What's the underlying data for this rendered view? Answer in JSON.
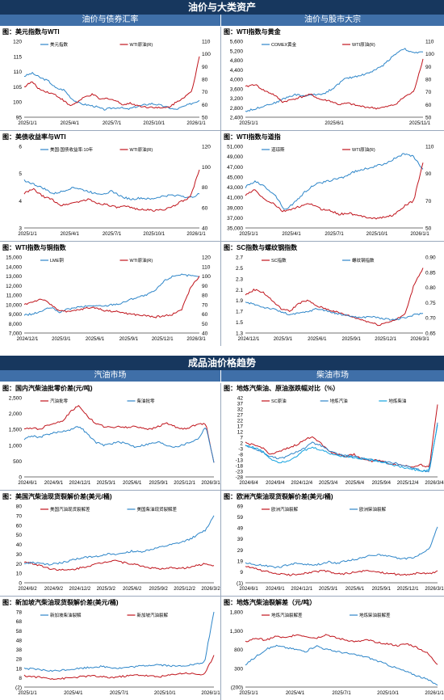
{
  "sections": {
    "top": "油价与大类资产",
    "top_left": "油价与债券汇率",
    "top_right": "油价与股市大宗",
    "bottom": "成品油价格趋势",
    "bottom_left": "汽油市场",
    "bottom_right": "柴油市场"
  },
  "colors": {
    "blue": "#2e86c9",
    "red": "#c0141c",
    "banner": "#17375e",
    "sub": "#3f6fa8"
  },
  "chart_data": [
    {
      "type": "line",
      "title": "图：美元指数与WTI",
      "x_ticks": [
        "2025/1/1",
        "2025/4/1",
        "2025/7/1",
        "2025/10/1",
        "2026/1/1"
      ],
      "y_ticks": [
        "95",
        "100",
        "105",
        "110",
        "115",
        "120"
      ],
      "ylim": [
        95,
        120
      ],
      "y2_ticks": [
        "50",
        "60",
        "70",
        "80",
        "90",
        "100",
        "110"
      ],
      "y2lim": [
        50,
        110
      ],
      "series": [
        {
          "name": "美元指数",
          "axis": "left",
          "color": "#2e86c9",
          "values": [
            108.5,
            109.5,
            108,
            107,
            104.5,
            104,
            101,
            99.5,
            99,
            98.5,
            97.5,
            98,
            98.2,
            97.6,
            98.4,
            99,
            99.5,
            99,
            98.2,
            97.5,
            98.5,
            99.5,
            100.5
          ]
        },
        {
          "name": "WTI原油(R)",
          "axis": "right",
          "color": "#c0141c",
          "values": [
            74,
            78,
            72,
            70,
            68,
            64,
            59,
            62,
            66,
            68,
            64,
            65,
            63,
            60,
            61,
            59,
            58,
            58,
            57,
            58,
            62,
            66,
            70,
            98
          ]
        }
      ]
    },
    {
      "type": "line",
      "title": "图：WTI指数与黄金",
      "x_ticks": [
        "2025/1/1",
        "2025/6/1",
        "2025/11/1"
      ],
      "y_ticks": [
        "2,400",
        "2,800",
        "3,200",
        "3,600",
        "4,000",
        "4,400",
        "4,800",
        "5,200",
        "5,600"
      ],
      "ylim": [
        2400,
        5600
      ],
      "y2_ticks": [
        "50",
        "60",
        "70",
        "80",
        "90",
        "100",
        "110"
      ],
      "y2lim": [
        50,
        110
      ],
      "series": [
        {
          "name": "COMEX黄金",
          "axis": "left",
          "color": "#2e86c9",
          "values": [
            2650,
            2750,
            2900,
            3000,
            3200,
            3350,
            3300,
            3350,
            3400,
            3650,
            4000,
            4100,
            4200,
            4350,
            4600,
            5000,
            5300,
            5100,
            5150
          ]
        },
        {
          "name": "WTI原油(R)",
          "axis": "right",
          "color": "#c0141c",
          "values": [
            74,
            76,
            71,
            68,
            62,
            64,
            66,
            68,
            64,
            63,
            60,
            61,
            59,
            58,
            57,
            58,
            60,
            66,
            70,
            96
          ]
        }
      ]
    },
    {
      "type": "line",
      "title": "图：美债收益率与WTI",
      "x_ticks": [
        "2025/1/1",
        "2025/4/1",
        "2025/7/1",
        "2025/10/1",
        "2026/1/1"
      ],
      "y_ticks": [
        "3",
        "4",
        "5",
        "6"
      ],
      "ylim": [
        3,
        6
      ],
      "y2_ticks": [
        "40",
        "60",
        "80",
        "100",
        "120"
      ],
      "y2lim": [
        40,
        120
      ],
      "series": [
        {
          "name": "美国:国债收益率:10年",
          "axis": "left",
          "color": "#2e86c9",
          "values": [
            4.75,
            4.6,
            4.45,
            4.25,
            4.35,
            4.5,
            4.4,
            4.3,
            4.25,
            4.35,
            4.15,
            4.05,
            4.1,
            4.05,
            4.15,
            4.2,
            4.2,
            4.1,
            4.25
          ]
        },
        {
          "name": "WTI原油(R)",
          "axis": "right",
          "color": "#c0141c",
          "values": [
            74,
            78,
            71,
            68,
            62,
            64,
            66,
            68,
            64,
            63,
            60,
            61,
            59,
            58,
            57,
            58,
            60,
            66,
            70,
            97
          ]
        }
      ]
    },
    {
      "type": "line",
      "title": "图：WTI指数与道指",
      "x_ticks": [
        "2025/1/1",
        "2025/4/1",
        "2025/7/1",
        "2025/10/1",
        "2026/1/1"
      ],
      "y_ticks": [
        "35,000",
        "37,000",
        "39,000",
        "41,000",
        "43,000",
        "45,000",
        "47,000",
        "49,000",
        "51,000"
      ],
      "ylim": [
        35000,
        51000
      ],
      "y2_ticks": [
        "50",
        "70",
        "90",
        "110"
      ],
      "y2lim": [
        50,
        110
      ],
      "series": [
        {
          "name": "道琼斯",
          "axis": "left",
          "color": "#2e86c9",
          "values": [
            43000,
            44200,
            43000,
            41500,
            38500,
            40000,
            42000,
            43500,
            44000,
            44500,
            45000,
            46000,
            46500,
            47000,
            47500,
            48500,
            49500,
            49000,
            46500
          ]
        },
        {
          "name": "WTI原油(R)",
          "axis": "right",
          "color": "#c0141c",
          "values": [
            74,
            78,
            71,
            68,
            62,
            64,
            66,
            68,
            64,
            63,
            60,
            61,
            59,
            58,
            57,
            58,
            60,
            66,
            70,
            98
          ]
        }
      ]
    },
    {
      "type": "line",
      "title": "图：WTI指数与铜指数",
      "x_ticks": [
        "2024/12/1",
        "2025/3/1",
        "2025/6/1",
        "2025/9/1",
        "2025/12/1",
        "2026/3/1"
      ],
      "y_ticks": [
        "7,000",
        "8,000",
        "9,000",
        "10,000",
        "11,000",
        "12,000",
        "13,000",
        "14,000",
        "15,000"
      ],
      "ylim": [
        7000,
        15000
      ],
      "y2_ticks": [
        "40",
        "50",
        "60",
        "70",
        "80",
        "90",
        "100",
        "110",
        "120"
      ],
      "y2lim": [
        40,
        120
      ],
      "series": [
        {
          "name": "LME铜",
          "axis": "left",
          "color": "#2e86c9",
          "values": [
            8900,
            9000,
            9300,
            9700,
            9200,
            9500,
            9700,
            9800,
            9900,
            9800,
            10000,
            10100,
            10500,
            10800,
            11000,
            11500,
            12500,
            13000,
            13200,
            13000,
            12900
          ]
        },
        {
          "name": "WTI原油(R)",
          "axis": "right",
          "color": "#c0141c",
          "values": [
            70,
            73,
            76,
            70,
            64,
            62,
            64,
            66,
            67,
            64,
            63,
            62,
            60,
            59,
            58,
            57,
            58,
            60,
            65,
            88,
            100
          ]
        }
      ]
    },
    {
      "type": "line",
      "title": "图：SC指数与螺纹钢指数",
      "x_ticks": [
        "2024/12/1",
        "2025/3/1",
        "2025/6/1",
        "2025/9/1",
        "2025/12/1",
        "2026/3/1"
      ],
      "y_ticks": [
        "1.3",
        "1.5",
        "1.7",
        "1.9",
        "2.1",
        "2.3",
        "2.5",
        "2.7"
      ],
      "ylim": [
        1.3,
        2.7
      ],
      "y2_ticks": [
        "0.65",
        "0.70",
        "0.75",
        "0.80",
        "0.85",
        "0.90"
      ],
      "y2lim": [
        0.65,
        0.9
      ],
      "series": [
        {
          "name": "SC指数",
          "axis": "left",
          "color": "#c0141c",
          "values": [
            2.0,
            2.1,
            2.05,
            1.9,
            1.75,
            1.7,
            1.85,
            1.9,
            1.8,
            1.75,
            1.7,
            1.65,
            1.6,
            1.55,
            1.5,
            1.45,
            1.5,
            1.55,
            1.65,
            2.2,
            2.5
          ]
        },
        {
          "name": "螺纹钢指数",
          "axis": "right",
          "color": "#2e86c9",
          "values": [
            0.75,
            0.745,
            0.735,
            0.73,
            0.72,
            0.71,
            0.715,
            0.72,
            0.73,
            0.725,
            0.715,
            0.71,
            0.705,
            0.7,
            0.705,
            0.7,
            0.695,
            0.695,
            0.7,
            0.71,
            0.715
          ]
        }
      ]
    },
    {
      "type": "line",
      "title": "图：国内汽柴油批零价差(元/吨)",
      "x_ticks": [
        "2024/6/1",
        "2024/9/1",
        "2024/12/1",
        "2025/3/1",
        "2025/6/1",
        "2025/9/1",
        "2025/12/1",
        "2026/3/1"
      ],
      "y_ticks": [
        "0",
        "500",
        "1,000",
        "1,500",
        "2,000",
        "2,500"
      ],
      "ylim": [
        0,
        2500
      ],
      "series": [
        {
          "name": "汽油批零",
          "color": "#c0141c",
          "values": [
            1500,
            1550,
            1500,
            1650,
            1700,
            1800,
            2100,
            2250,
            1900,
            1700,
            1600,
            1550,
            1600,
            1550,
            1600,
            1550,
            1500,
            1600,
            1700,
            1600,
            1500,
            1550,
            1700,
            1650,
            450
          ]
        },
        {
          "name": "柴油批零",
          "color": "#2e86c9",
          "values": [
            1200,
            1300,
            1250,
            1350,
            1400,
            1450,
            1500,
            1600,
            1350,
            1100,
            1000,
            1050,
            1100,
            1050,
            950,
            1000,
            1050,
            1100,
            1000,
            950,
            1000,
            1100,
            1200,
            1600,
            450
          ]
        }
      ]
    },
    {
      "type": "line",
      "title": "图：地炼汽柴油、原油涨跌幅对比（%）",
      "x_ticks": [
        "2024/6/4",
        "2024/9/4",
        "2024/12/4",
        "2025/3/4",
        "2025/6/4",
        "2025/9/4",
        "2025/12/4",
        "2026/3/4"
      ],
      "y_ticks": [
        "-28",
        "-23",
        "-18",
        "-13",
        "-8",
        "-3",
        "2",
        "7",
        "12",
        "17",
        "22",
        "27",
        "32",
        "37",
        "42"
      ],
      "ylim": [
        -28,
        42
      ],
      "series": [
        {
          "name": "SC原油",
          "color": "#c0141c",
          "values": [
            2,
            0,
            -2,
            -8,
            -6,
            -3,
            0,
            4,
            8,
            2,
            -5,
            -8,
            -10,
            -8,
            -12,
            -14,
            -13,
            -16,
            -17,
            -18,
            -19,
            -17,
            -20,
            36
          ]
        },
        {
          "name": "地炼汽油",
          "color": "#2e86c9",
          "values": [
            0,
            -3,
            -6,
            -10,
            -12,
            -10,
            -6,
            -3,
            2,
            0,
            -5,
            -8,
            -9,
            -10,
            -12,
            -13,
            -14,
            -15,
            -16,
            -18,
            -20,
            -22,
            -24,
            20
          ]
        },
        {
          "name": "地炼柴油",
          "color": "#14a3e0",
          "values": [
            0,
            -2,
            -5,
            -12,
            -15,
            -14,
            -10,
            -5,
            -2,
            -4,
            -7,
            -9,
            -10,
            -11,
            -12,
            -13,
            -14,
            -16,
            -18,
            -20,
            -21,
            -23,
            -22,
            18
          ]
        }
      ]
    },
    {
      "type": "line",
      "title": "图：美国汽柴油现货裂解价差(美元/桶)",
      "x_ticks": [
        "2024/6/2",
        "2024/9/2",
        "2024/12/2",
        "2025/3/2",
        "2025/6/2",
        "2025/9/2",
        "2025/12/2",
        "2026/3/2"
      ],
      "y_ticks": [
        "0",
        "10",
        "20",
        "30",
        "40",
        "50",
        "60",
        "70",
        "80"
      ],
      "ylim": [
        0,
        80
      ],
      "series": [
        {
          "name": "美国汽油现货裂解差",
          "color": "#c0141c",
          "values": [
            22,
            20,
            18,
            15,
            14,
            13,
            14,
            16,
            18,
            20,
            22,
            24,
            21,
            20,
            18,
            16,
            15,
            14,
            16,
            15,
            16,
            18,
            20,
            18
          ]
        },
        {
          "name": "美国柴油现货裂解差",
          "color": "#2e86c9",
          "values": [
            20,
            21,
            20,
            19,
            20,
            22,
            24,
            26,
            27,
            28,
            30,
            29,
            31,
            33,
            32,
            34,
            36,
            38,
            40,
            42,
            45,
            50,
            55,
            70
          ]
        }
      ]
    },
    {
      "type": "line",
      "title": "图：欧洲汽柴油现货裂解价差(美元/桶)",
      "x_ticks": [
        "2024/6/1",
        "2024/9/1",
        "2024/12/1",
        "2025/3/1",
        "2025/6/1",
        "2025/9/1",
        "2025/12/1",
        "2026/3/1"
      ],
      "y_ticks": [
        "(1)",
        "9",
        "19",
        "29",
        "39",
        "49",
        "59",
        "69"
      ],
      "ylim": [
        -1,
        69
      ],
      "series": [
        {
          "name": "欧洲汽油裂解",
          "color": "#c0141c",
          "values": [
            14,
            12,
            10,
            8,
            7,
            6,
            7,
            8,
            9,
            10,
            8,
            7,
            8,
            9,
            10,
            9,
            8,
            7,
            6,
            7,
            8,
            7,
            10
          ]
        },
        {
          "name": "欧洲柴油裂解",
          "color": "#2e86c9",
          "values": [
            17,
            16,
            15,
            14,
            13,
            15,
            17,
            16,
            15,
            16,
            18,
            17,
            19,
            20,
            22,
            24,
            25,
            23,
            22,
            21,
            22,
            25,
            30,
            50
          ]
        }
      ]
    },
    {
      "type": "line",
      "title": "图：新加坡汽柴油现货裂解价差(美元/桶)",
      "x_ticks": [
        "2025/1/1",
        "2025/4/1",
        "2025/7/1",
        "2025/10/1",
        "2026/1/1"
      ],
      "y_ticks": [
        "(2)",
        "8",
        "18",
        "28",
        "38",
        "48",
        "58",
        "68",
        "78"
      ],
      "ylim": [
        -2,
        78
      ],
      "series": [
        {
          "name": "新加坡柴油裂解",
          "color": "#2e86c9",
          "values": [
            18,
            17,
            16,
            15,
            16,
            17,
            18,
            19,
            20,
            19,
            18,
            19,
            20,
            21,
            22,
            21,
            20,
            21,
            22,
            24,
            78
          ]
        },
        {
          "name": "新加坡汽油裂解",
          "color": "#c0141c",
          "values": [
            10,
            9,
            8,
            7,
            7,
            8,
            9,
            10,
            9,
            8,
            9,
            10,
            11,
            10,
            9,
            10,
            12,
            13,
            12,
            11,
            32
          ]
        }
      ]
    },
    {
      "type": "line",
      "title": "图：地炼汽柴油裂解差（元/吨）",
      "x_ticks": [
        "2025/1/1",
        "2025/4/1",
        "2025/7/1",
        "2025/10/1",
        "2026/1/1"
      ],
      "y_ticks": [
        "(200)",
        "300",
        "800",
        "1,300",
        "1,800"
      ],
      "ylim": [
        -200,
        1800
      ],
      "series": [
        {
          "name": "地炼汽油裂解差",
          "color": "#c0141c",
          "values": [
            1000,
            1100,
            1050,
            1150,
            1100,
            1200,
            1150,
            1100,
            1200,
            1100,
            1050,
            1000,
            1050,
            1000,
            950,
            900,
            950,
            850,
            700,
            400
          ]
        },
        {
          "name": "地炼柴油裂解差",
          "color": "#2e86c9",
          "values": [
            400,
            600,
            800,
            900,
            850,
            800,
            750,
            900,
            800,
            750,
            700,
            650,
            600,
            500,
            400,
            300,
            200,
            100,
            0,
            -150
          ]
        }
      ]
    }
  ]
}
